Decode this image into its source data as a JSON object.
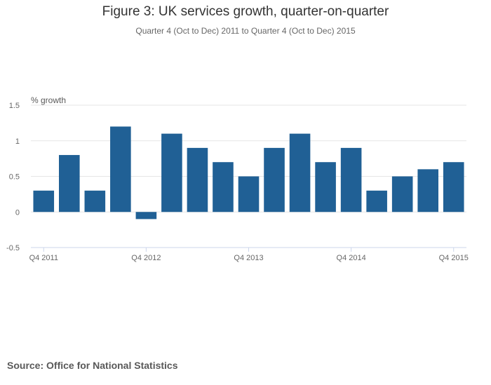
{
  "chart_data": {
    "type": "bar",
    "title": "Figure 3: UK services growth, quarter-on-quarter",
    "subtitle": "Quarter 4 (Oct to Dec) 2011 to Quarter 4 (Oct to Dec) 2015",
    "ylabel": "% growth",
    "xlabel": "",
    "ylim": [
      -0.5,
      1.5
    ],
    "yticks": [
      1.5,
      1,
      0.5,
      0,
      -0.5
    ],
    "ytick_labels": [
      "1.5",
      "1",
      "0.5",
      "0",
      "-0.5"
    ],
    "categories": [
      "Q4 2011",
      "Q1 2012",
      "Q2 2012",
      "Q3 2012",
      "Q4 2012",
      "Q1 2013",
      "Q2 2013",
      "Q3 2013",
      "Q4 2013",
      "Q1 2014",
      "Q2 2014",
      "Q3 2014",
      "Q4 2014",
      "Q1 2015",
      "Q2 2015",
      "Q3 2015",
      "Q4 2015"
    ],
    "values": [
      0.3,
      0.8,
      0.3,
      1.2,
      -0.1,
      1.1,
      0.9,
      0.7,
      0.5,
      0.9,
      1.1,
      0.7,
      0.9,
      0.3,
      0.5,
      0.6,
      0.7
    ],
    "xtick_labels": [
      "Q4 2011",
      "Q4 2012",
      "Q4 2013",
      "Q4 2014",
      "Q4 2015"
    ],
    "bar_color": "#206095",
    "grid": true
  },
  "footer": {
    "source": "Source: Office for National Statistics"
  }
}
